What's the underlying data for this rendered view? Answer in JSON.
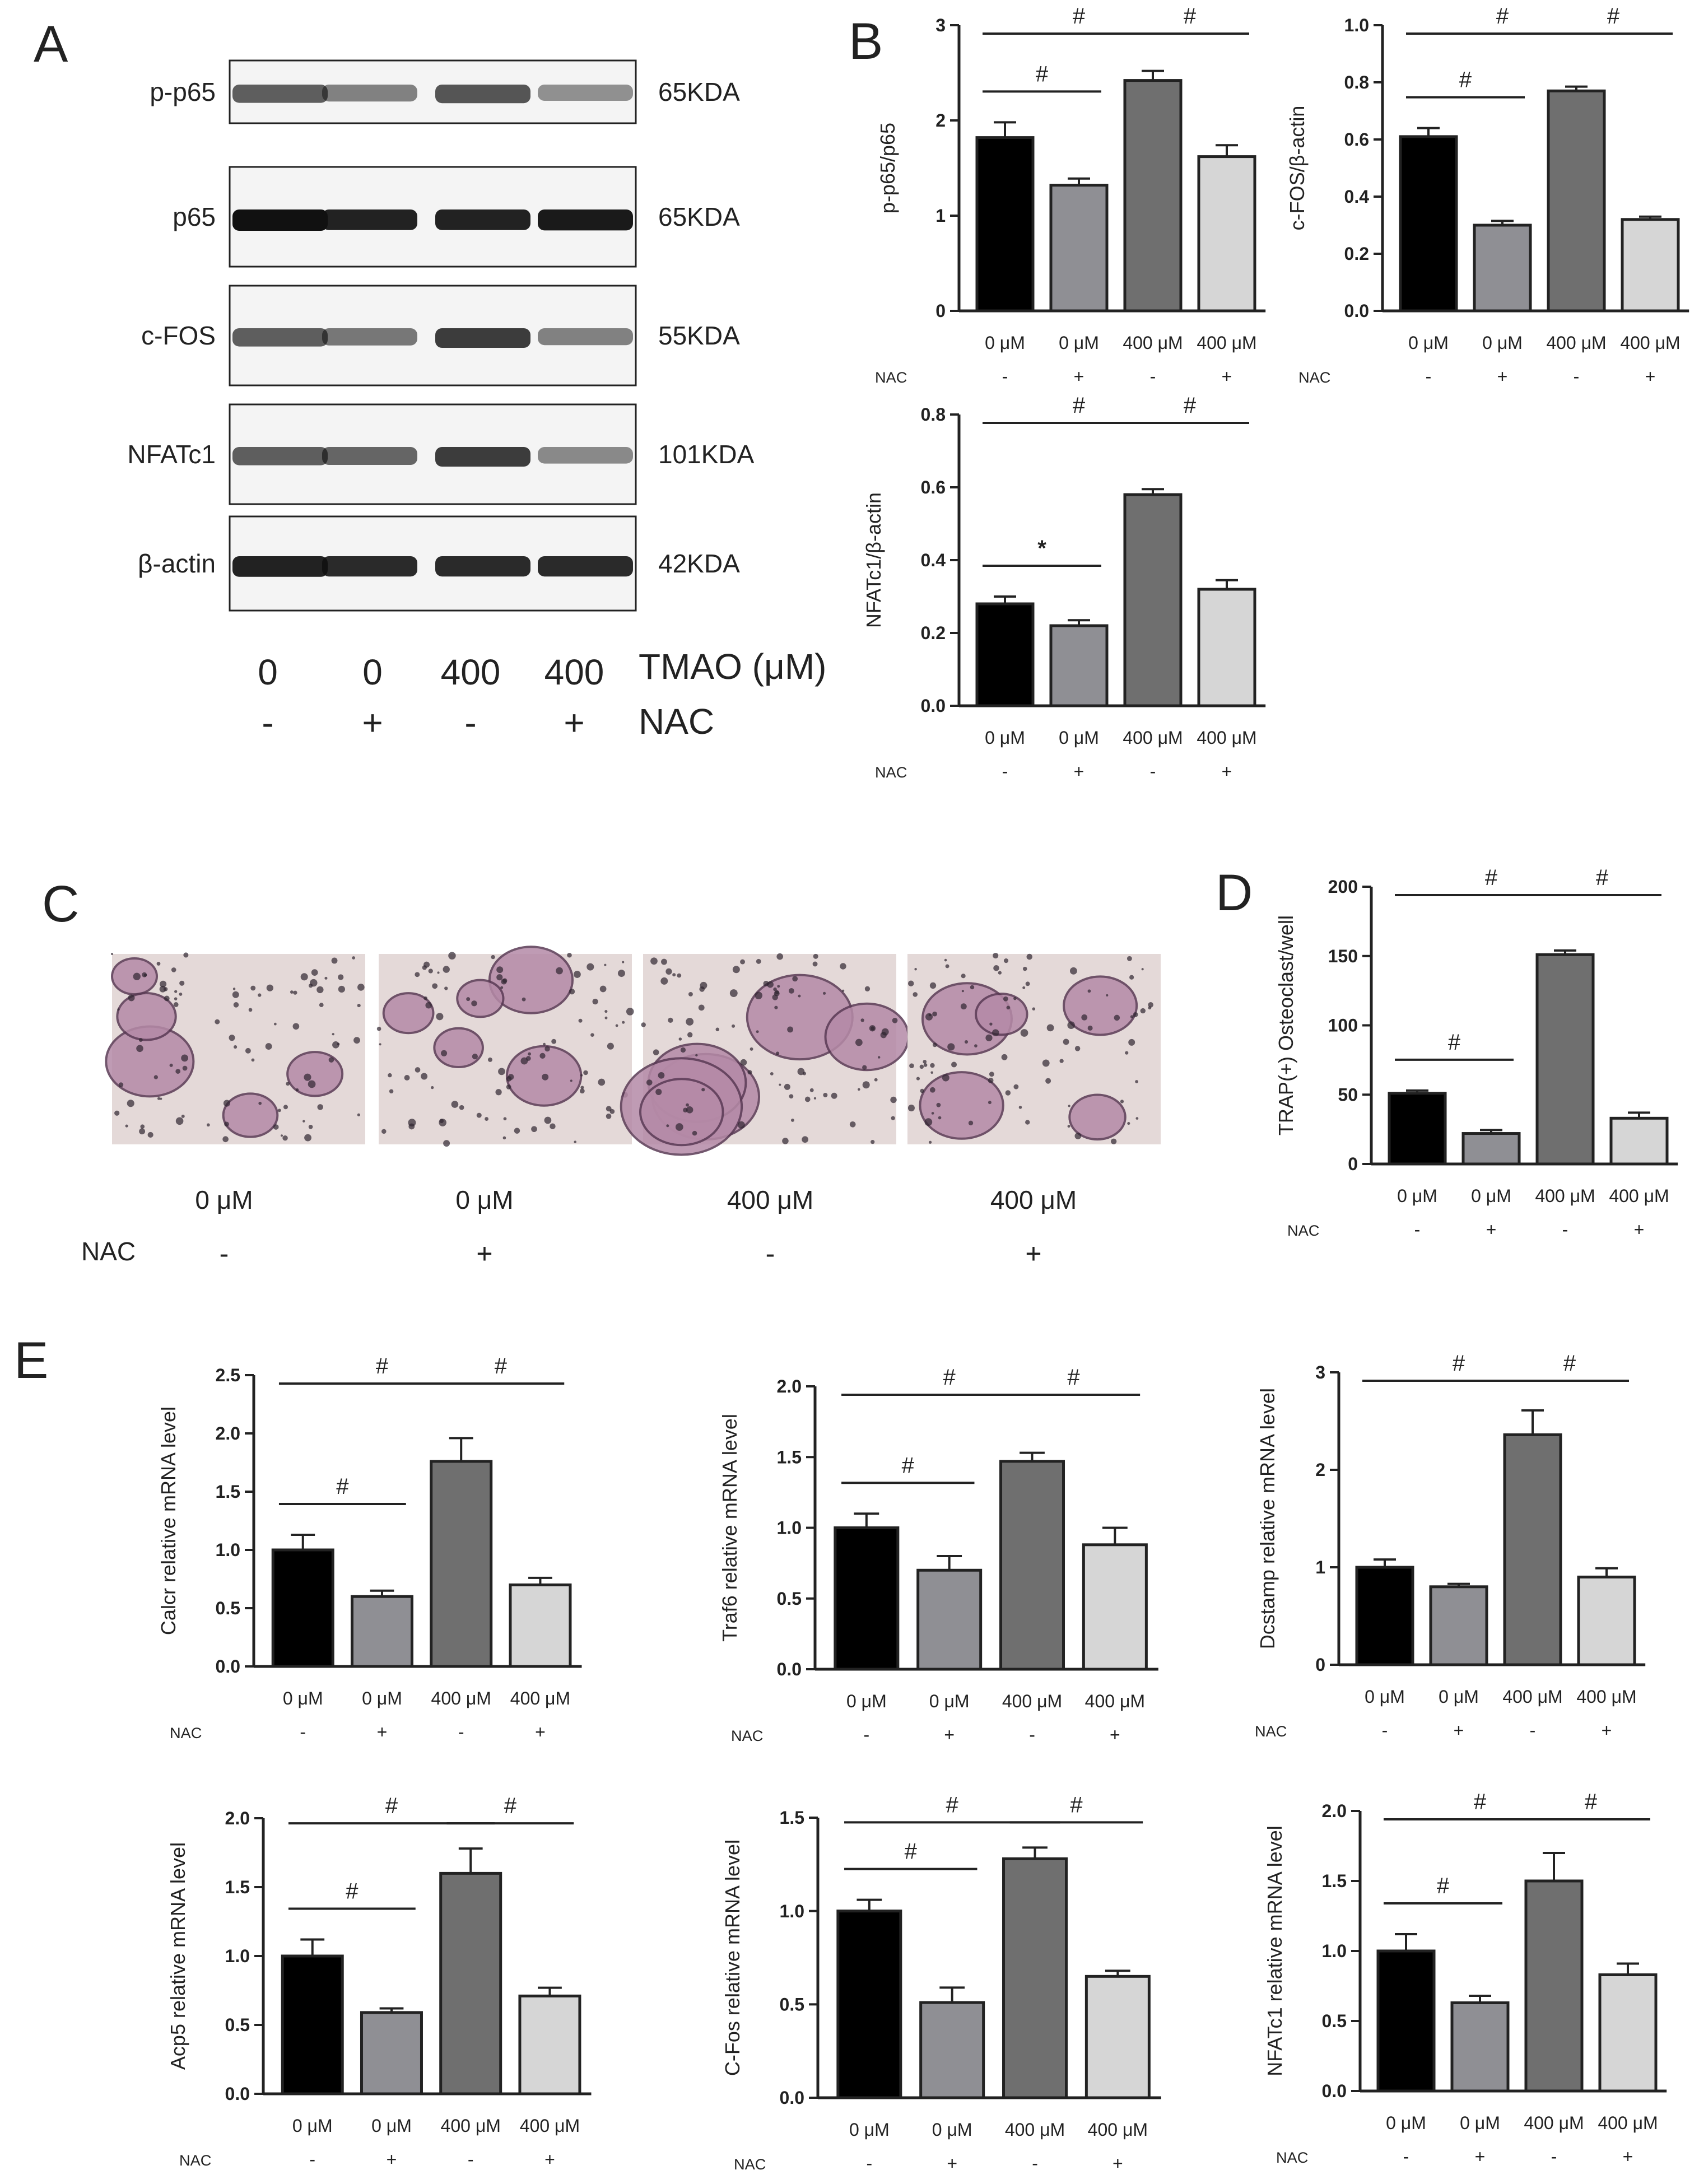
{
  "panel_letters": {
    "a": "A",
    "b": "B",
    "c": "C",
    "d": "D",
    "e": "E"
  },
  "western_blot": {
    "bands": [
      {
        "label": "p-p65",
        "size": "65KDA",
        "intensity": [
          0.55,
          0.35,
          0.6,
          0.25
        ]
      },
      {
        "label": "p65",
        "size": "65KDA",
        "intensity": [
          1.0,
          0.9,
          0.9,
          0.95
        ]
      },
      {
        "label": "c-FOS",
        "size": "55KDA",
        "intensity": [
          0.55,
          0.4,
          0.75,
          0.35
        ]
      },
      {
        "label": "NFATc1",
        "size": "101KDA",
        "intensity": [
          0.55,
          0.5,
          0.75,
          0.3
        ]
      },
      {
        "label": "β-actin",
        "size": "42KDA",
        "intensity": [
          0.9,
          0.85,
          0.85,
          0.85
        ]
      }
    ],
    "tmao_values": [
      "0",
      "0",
      "400",
      "400"
    ],
    "tmao_label": "TMAO (μM)",
    "nac_signs": [
      "-",
      "+",
      "-",
      "+"
    ],
    "nac_label": "NAC"
  },
  "staining": {
    "labels": [
      "0 μM",
      "0 μM",
      "400 μM",
      "400 μM"
    ],
    "nac_label": "NAC",
    "nac_signs": [
      "-",
      "+",
      "-",
      "+"
    ]
  },
  "colors": {
    "bar1": "#000000",
    "bar2": "#8f8f94",
    "bar3": "#6f6f6f",
    "bar4": "#d6d6d6",
    "stain_bg": "#e4d9d8",
    "stain_cell": "#b58aa7"
  },
  "chart_data": [
    {
      "id": "B1",
      "type": "bar",
      "ylabel": "p-p65/p65",
      "ylim": [
        0,
        3
      ],
      "yticks": [
        0,
        1,
        2,
        3
      ],
      "categories": [
        "0 μM",
        "0 μM",
        "400 μM",
        "400 μM"
      ],
      "nac_label": "NAC",
      "nac": [
        "-",
        "+",
        "-",
        "+"
      ],
      "values": [
        1.82,
        1.32,
        2.42,
        1.62
      ],
      "errors": [
        0.16,
        0.07,
        0.1,
        0.12
      ],
      "annotations": [
        {
          "text": "#",
          "from": 0,
          "to": 1
        },
        {
          "text": "#",
          "from": 0,
          "to": 2
        },
        {
          "text": "#",
          "from": 2,
          "to": 3
        }
      ]
    },
    {
      "id": "B2",
      "type": "bar",
      "ylabel": "c-FOS/β-actin",
      "ylim": [
        0,
        1
      ],
      "yticks": [
        "0.0",
        "0.2",
        "0.4",
        "0.6",
        "0.8",
        "1.0"
      ],
      "categories": [
        "0 μM",
        "0 μM",
        "400 μM",
        "400 μM"
      ],
      "nac_label": "NAC",
      "nac": [
        "-",
        "+",
        "-",
        "+"
      ],
      "values": [
        0.61,
        0.3,
        0.77,
        0.32
      ],
      "errors": [
        0.03,
        0.015,
        0.015,
        0.01
      ],
      "annotations": [
        {
          "text": "#",
          "from": 0,
          "to": 1
        },
        {
          "text": "#",
          "from": 0,
          "to": 2
        },
        {
          "text": "#",
          "from": 2,
          "to": 3
        }
      ]
    },
    {
      "id": "B3",
      "type": "bar",
      "ylabel": "NFATc1/β-actin",
      "ylim": [
        0,
        0.8
      ],
      "yticks": [
        "0.0",
        "0.2",
        "0.4",
        "0.6",
        "0.8"
      ],
      "categories": [
        "0 μM",
        "0 μM",
        "400 μM",
        "400 μM"
      ],
      "nac_label": "NAC",
      "nac": [
        "-",
        "+",
        "-",
        "+"
      ],
      "values": [
        0.28,
        0.22,
        0.58,
        0.32
      ],
      "errors": [
        0.02,
        0.015,
        0.015,
        0.025
      ],
      "annotations": [
        {
          "text": "*",
          "from": 0,
          "to": 1
        },
        {
          "text": "#",
          "from": 0,
          "to": 2
        },
        {
          "text": "#",
          "from": 2,
          "to": 3
        }
      ]
    },
    {
      "id": "D",
      "type": "bar",
      "ylabel": "TRAP(+) Osteoclast/well",
      "ylim": [
        0,
        200
      ],
      "yticks": [
        0,
        50,
        100,
        150,
        200
      ],
      "categories": [
        "0 μM",
        "0 μM",
        "400 μM",
        "400 μM"
      ],
      "nac_label": "NAC",
      "nac": [
        "-",
        "+",
        "-",
        "+"
      ],
      "values": [
        51,
        22,
        151,
        33
      ],
      "errors": [
        2,
        2.5,
        3,
        4
      ],
      "annotations": [
        {
          "text": "#",
          "from": 0,
          "to": 1
        },
        {
          "text": "#",
          "from": 0,
          "to": 2
        },
        {
          "text": "#",
          "from": 2,
          "to": 3
        }
      ]
    },
    {
      "id": "E1",
      "type": "bar",
      "ylabel": "Calcr relative mRNA level",
      "ylim": [
        0,
        2.5
      ],
      "yticks": [
        "0.0",
        "0.5",
        "1.0",
        "1.5",
        "2.0",
        "2.5"
      ],
      "categories": [
        "0 μM",
        "0 μM",
        "400 μM",
        "400 μM"
      ],
      "nac_label": "NAC",
      "nac": [
        "-",
        "+",
        "-",
        "+"
      ],
      "values": [
        1.0,
        0.6,
        1.76,
        0.7
      ],
      "errors": [
        0.13,
        0.05,
        0.2,
        0.06
      ],
      "annotations": [
        {
          "text": "#",
          "from": 0,
          "to": 1
        },
        {
          "text": "#",
          "from": 0,
          "to": 2
        },
        {
          "text": "#",
          "from": 2,
          "to": 3
        }
      ]
    },
    {
      "id": "E2",
      "type": "bar",
      "ylabel": "Traf6 relative mRNA level",
      "ylim": [
        0,
        2
      ],
      "yticks": [
        "0.0",
        "0.5",
        "1.0",
        "1.5",
        "2.0"
      ],
      "categories": [
        "0 μM",
        "0 μM",
        "400 μM",
        "400 μM"
      ],
      "nac_label": "NAC",
      "nac": [
        "-",
        "+",
        "-",
        "+"
      ],
      "values": [
        1.0,
        0.7,
        1.47,
        0.88
      ],
      "errors": [
        0.1,
        0.1,
        0.06,
        0.12
      ],
      "annotations": [
        {
          "text": "#",
          "from": 0,
          "to": 1
        },
        {
          "text": "#",
          "from": 0,
          "to": 2
        },
        {
          "text": "#",
          "from": 2,
          "to": 3
        }
      ]
    },
    {
      "id": "E3",
      "type": "bar",
      "ylabel": "Dcstamp relative mRNA level",
      "ylim": [
        0,
        3
      ],
      "yticks": [
        0,
        1,
        2,
        3
      ],
      "categories": [
        "0 μM",
        "0 μM",
        "400 μM",
        "400 μM"
      ],
      "nac_label": "NAC",
      "nac": [
        "-",
        "+",
        "-",
        "+"
      ],
      "values": [
        1.0,
        0.8,
        2.36,
        0.9
      ],
      "errors": [
        0.08,
        0.03,
        0.25,
        0.09
      ],
      "annotations": [
        {
          "text": "#",
          "from": 0,
          "to": 2
        },
        {
          "text": "#",
          "from": 2,
          "to": 3
        }
      ]
    },
    {
      "id": "E4",
      "type": "bar",
      "ylabel": "Acp5 relative mRNA level",
      "ylim": [
        0,
        2
      ],
      "yticks": [
        "0.0",
        "0.5",
        "1.0",
        "1.5",
        "2.0"
      ],
      "categories": [
        "0 μM",
        "0 μM",
        "400 μM",
        "400 μM"
      ],
      "nac_label": "NAC",
      "nac": [
        "-",
        "+",
        "-",
        "+"
      ],
      "values": [
        1.0,
        0.59,
        1.6,
        0.71
      ],
      "errors": [
        0.12,
        0.03,
        0.18,
        0.06
      ],
      "annotations": [
        {
          "text": "#",
          "from": 0,
          "to": 1
        },
        {
          "text": "#",
          "from": 0,
          "to": 2
        },
        {
          "text": "#",
          "from": 2,
          "to": 3
        }
      ]
    },
    {
      "id": "E5",
      "type": "bar",
      "ylabel": "C-Fos relative mRNA level",
      "ylim": [
        0,
        1.5
      ],
      "yticks": [
        "0.0",
        "0.5",
        "1.0",
        "1.5"
      ],
      "categories": [
        "0 μM",
        "0 μM",
        "400 μM",
        "400 μM"
      ],
      "nac_label": "NAC",
      "nac": [
        "-",
        "+",
        "-",
        "+"
      ],
      "values": [
        1.0,
        0.51,
        1.28,
        0.65
      ],
      "errors": [
        0.06,
        0.08,
        0.06,
        0.03
      ],
      "annotations": [
        {
          "text": "#",
          "from": 0,
          "to": 1
        },
        {
          "text": "#",
          "from": 0,
          "to": 2
        },
        {
          "text": "#",
          "from": 2,
          "to": 3
        }
      ]
    },
    {
      "id": "E6",
      "type": "bar",
      "ylabel": "NFATc1 relative mRNA level",
      "ylim": [
        0,
        2
      ],
      "yticks": [
        "0.0",
        "0.5",
        "1.0",
        "1.5",
        "2.0"
      ],
      "categories": [
        "0 μM",
        "0 μM",
        "400 μM",
        "400 μM"
      ],
      "nac_label": "NAC",
      "nac": [
        "-",
        "+",
        "-",
        "+"
      ],
      "values": [
        1.0,
        0.63,
        1.5,
        0.83
      ],
      "errors": [
        0.12,
        0.05,
        0.2,
        0.08
      ],
      "annotations": [
        {
          "text": "#",
          "from": 0,
          "to": 1
        },
        {
          "text": "#",
          "from": 0,
          "to": 2
        },
        {
          "text": "#",
          "from": 2,
          "to": 3
        }
      ]
    }
  ]
}
